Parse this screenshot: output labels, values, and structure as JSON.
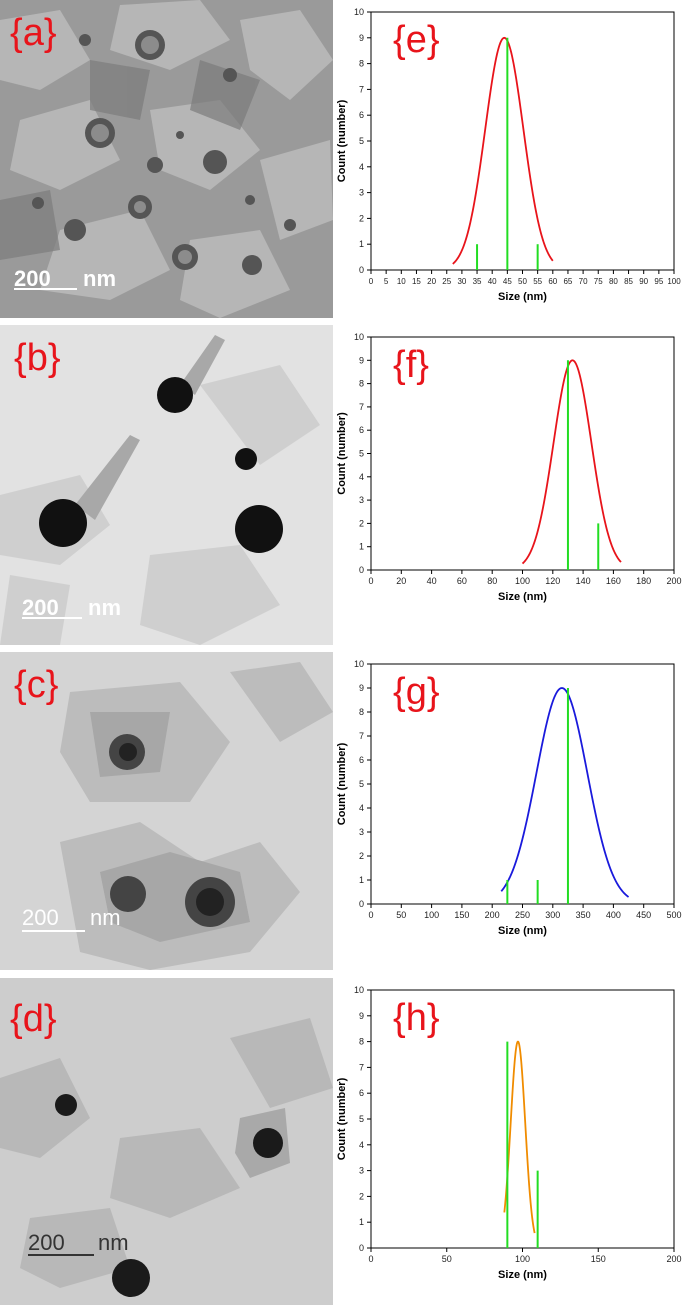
{
  "panels": [
    {
      "label": "{a}",
      "scale_value": "200",
      "scale_unit": "nm",
      "scale_color": "#ffffff"
    },
    {
      "label": "{b}",
      "scale_value": "200",
      "scale_unit": "nm",
      "scale_color": "#ffffff"
    },
    {
      "label": "{c}",
      "scale_value": "200",
      "scale_unit": "nm",
      "scale_color": "#ffffff"
    },
    {
      "label": "{d}",
      "scale_value": "200",
      "scale_unit": "nm",
      "scale_color": "#333333"
    }
  ],
  "chart_data": [
    {
      "type": "line",
      "label": "{e}",
      "xlabel": "Size (nm)",
      "ylabel": "Count (number)",
      "xlim": [
        0,
        100
      ],
      "ylim": [
        0,
        10
      ],
      "xticks": [
        0,
        5,
        10,
        15,
        20,
        25,
        30,
        35,
        40,
        45,
        50,
        55,
        60,
        65,
        70,
        75,
        80,
        85,
        90,
        95,
        100
      ],
      "yticks": [
        0,
        1,
        2,
        3,
        4,
        5,
        6,
        7,
        8,
        9,
        10
      ],
      "curve": {
        "color": "#e8141b",
        "peak_x": 44,
        "peak_y": 9,
        "sigma": 6.3,
        "x_range": [
          27,
          60
        ]
      },
      "bars": {
        "color": "#22dd22",
        "x": [
          35,
          45,
          55
        ],
        "y": [
          1,
          9,
          1
        ]
      }
    },
    {
      "type": "line",
      "label": "{f}",
      "xlabel": "Size (nm)",
      "ylabel": "Count (number)",
      "xlim": [
        0,
        200
      ],
      "ylim": [
        0,
        10
      ],
      "xticks": [
        0,
        20,
        40,
        60,
        80,
        100,
        120,
        140,
        160,
        180,
        200
      ],
      "yticks": [
        0,
        1,
        2,
        3,
        4,
        5,
        6,
        7,
        8,
        9,
        10
      ],
      "curve": {
        "color": "#e8141b",
        "peak_x": 133,
        "peak_y": 9,
        "sigma": 12.5,
        "x_range": [
          100,
          165
        ]
      },
      "bars": {
        "color": "#22dd22",
        "x": [
          130,
          150
        ],
        "y": [
          9,
          2
        ]
      }
    },
    {
      "type": "line",
      "label": "{g}",
      "xlabel": "Size (nm)",
      "ylabel": "Count (number)",
      "xlim": [
        0,
        500
      ],
      "ylim": [
        0,
        10
      ],
      "xticks": [
        0,
        50,
        100,
        150,
        200,
        250,
        300,
        350,
        400,
        450,
        500
      ],
      "yticks": [
        0,
        1,
        2,
        3,
        4,
        5,
        6,
        7,
        8,
        9,
        10
      ],
      "curve": {
        "color": "#1a1adc",
        "peak_x": 315,
        "peak_y": 9,
        "sigma": 42,
        "x_range": [
          215,
          425
        ]
      },
      "bars": {
        "color": "#22dd22",
        "x": [
          225,
          275,
          325
        ],
        "y": [
          1,
          1,
          9
        ]
      }
    },
    {
      "type": "line",
      "label": "{h}",
      "xlabel": "Size (nm)",
      "ylabel": "Count (number)",
      "xlim": [
        0,
        200
      ],
      "ylim": [
        0,
        10
      ],
      "xticks": [
        0,
        50,
        100,
        150,
        200
      ],
      "yticks": [
        0,
        1,
        2,
        3,
        4,
        5,
        6,
        7,
        8,
        9,
        10
      ],
      "curve": {
        "color": "#f08c00",
        "peak_x": 97,
        "peak_y": 8,
        "sigma": 4.8,
        "x_range": [
          88,
          108
        ]
      },
      "bars": {
        "color": "#22dd22",
        "x": [
          90,
          110
        ],
        "y": [
          8,
          3
        ]
      }
    }
  ]
}
